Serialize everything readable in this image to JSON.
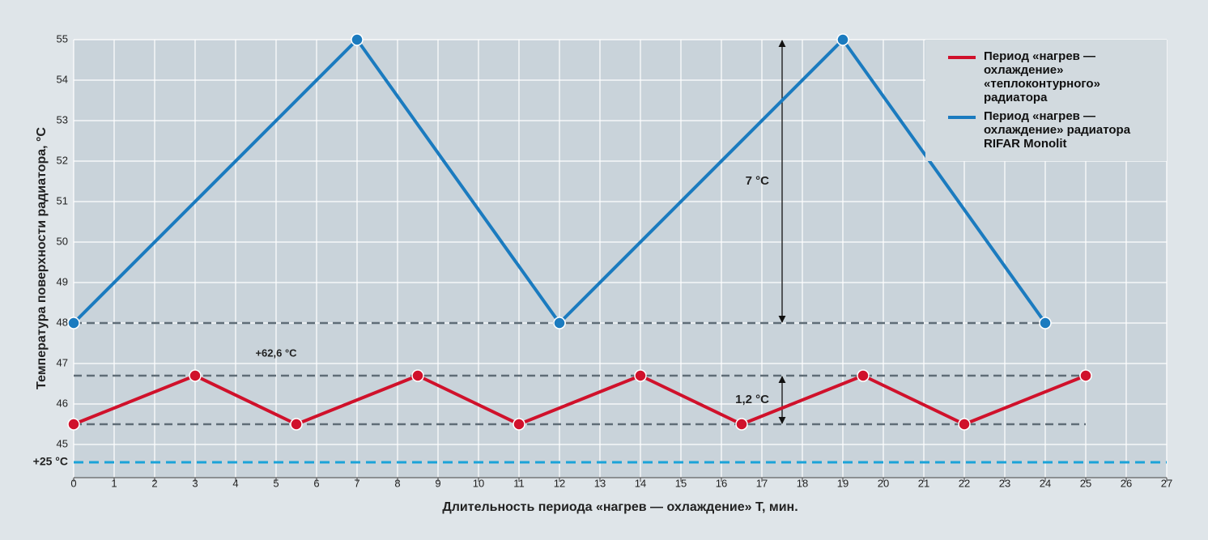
{
  "chart_data": {
    "type": "line",
    "x_label": "Длительность периода «нагрев — охлаждение» T, мин.",
    "y_label": "Температура поверхности радиатора, °C",
    "xlim": [
      0,
      27
    ],
    "xticks": [
      0,
      1,
      2,
      3,
      4,
      5,
      6,
      7,
      8,
      9,
      10,
      11,
      12,
      13,
      14,
      15,
      16,
      17,
      18,
      19,
      20,
      21,
      22,
      23,
      24,
      25,
      26,
      27
    ],
    "ylim": [
      44.2,
      55
    ],
    "yticks": [
      45,
      46,
      47,
      48,
      49,
      50,
      51,
      52,
      53,
      54,
      55
    ],
    "grid": true,
    "legend": "upper right",
    "series": [
      {
        "name": "Период «нагрев — охлаждение» «теплоконтурного» радиатора",
        "color": "#d0112b",
        "x": [
          0,
          3,
          5.5,
          8.5,
          11,
          14,
          16.5,
          19.5,
          22,
          25
        ],
        "values": [
          45.5,
          46.7,
          45.5,
          46.7,
          45.5,
          46.7,
          45.5,
          46.7,
          45.5,
          46.7
        ]
      },
      {
        "name": "Период «нагрев — охлаждение» радиатора RIFAR Monolit",
        "color": "#1b7bbf",
        "x": [
          0,
          7,
          12,
          19,
          24
        ],
        "values": [
          48,
          55,
          48,
          55,
          48
        ]
      }
    ],
    "hlines": [
      {
        "y": 48,
        "x": [
          0,
          24
        ]
      },
      {
        "y": 46.7,
        "x": [
          0,
          25
        ]
      },
      {
        "y": 45.5,
        "x": [
          0,
          25
        ]
      }
    ],
    "ranges": [
      {
        "label": "7 °C",
        "low": 48,
        "high": 55,
        "x": 17.5,
        "color": "#1b7bbf"
      },
      {
        "label": "1,2 °C",
        "low": 45.5,
        "high": 46.7,
        "x": 17.5,
        "color": "#d0112b"
      }
    ],
    "annotation": "+62,6 °C",
    "reference_line": {
      "label": "+25 °C",
      "color": "#1ba3d8"
    }
  }
}
